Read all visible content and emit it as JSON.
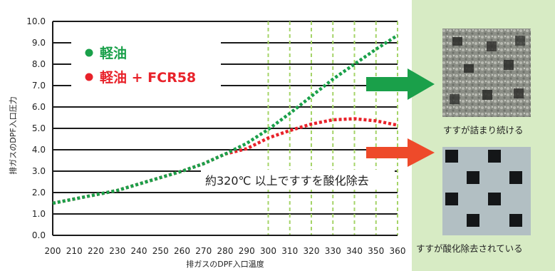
{
  "chart_data": {
    "type": "line",
    "xlabel": "排ガスのDPF入口温度",
    "ylabel": "排ガスのDPF入口圧力",
    "xlim": [
      200,
      360
    ],
    "ylim": [
      0,
      10
    ],
    "xticks": [
      "200",
      "210",
      "220",
      "230",
      "240",
      "250",
      "260",
      "270",
      "280",
      "290",
      "300",
      "310",
      "320",
      "330",
      "340",
      "350",
      "360"
    ],
    "yticks": [
      "0.0",
      "1.0",
      "2.0",
      "3.0",
      "4.0",
      "5.0",
      "6.0",
      "7.0",
      "8.0",
      "9.0",
      "10.0"
    ],
    "grid": "horizontal",
    "legend_position": "top-left",
    "series": [
      {
        "name": "軽油",
        "color": "#1aa04a",
        "x": [
          200,
          210,
          220,
          230,
          240,
          250,
          260,
          270,
          280,
          290,
          300,
          310,
          320,
          330,
          340,
          350,
          360
        ],
        "y": [
          1.5,
          1.7,
          1.9,
          2.1,
          2.4,
          2.7,
          3.0,
          3.35,
          3.8,
          4.3,
          4.95,
          5.7,
          6.5,
          7.3,
          8.0,
          8.7,
          9.35
        ]
      },
      {
        "name": "軽油 + FCR58",
        "color": "#e8222a",
        "x": [
          200,
          210,
          220,
          230,
          240,
          250,
          260,
          270,
          280,
          290,
          300,
          310,
          320,
          330,
          340,
          350,
          360
        ],
        "y": [
          1.5,
          1.7,
          1.9,
          2.1,
          2.4,
          2.7,
          3.0,
          3.35,
          3.8,
          4.05,
          4.55,
          4.9,
          5.2,
          5.4,
          5.45,
          5.35,
          5.15
        ]
      }
    ],
    "highlight_band": [
      300,
      360
    ],
    "annotation": "約320℃ 以上ですすを酸化除去"
  },
  "arrows": {
    "green": "#1aa04a",
    "red": "#ee4a2a"
  },
  "captions": {
    "top": "すすが詰まり続ける",
    "bottom": "すすが酸化除去されている"
  }
}
